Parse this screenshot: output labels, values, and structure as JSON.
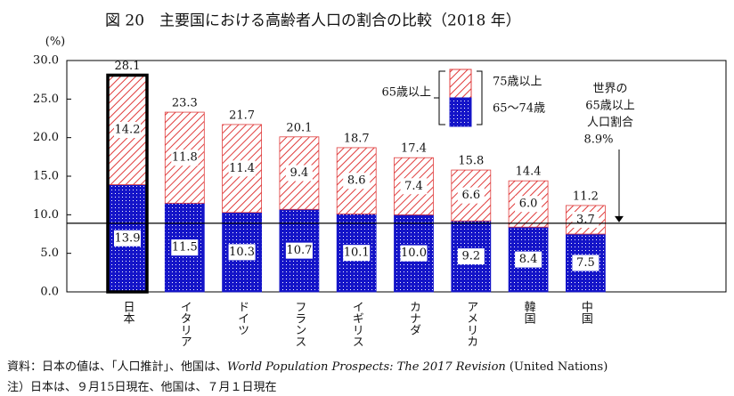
{
  "chart_data": {
    "type": "stacked-bar",
    "title": "図 20　主要国における高齢者人口の割合の比較（2018 年）",
    "y_label": "(%)",
    "categories": [
      "日本",
      "イタリア",
      "ドイツ",
      "フランス",
      "イギリス",
      "カナダ",
      "アメリカ",
      "韓国",
      "中国"
    ],
    "series": [
      {
        "name": "65〜74歳",
        "color": "#1414c8",
        "values": [
          13.9,
          11.5,
          10.3,
          10.7,
          10.1,
          10.0,
          9.2,
          8.4,
          7.5
        ],
        "value_labels": [
          "13.9",
          "11.5",
          "10.3",
          "10.7",
          "10.1",
          "10.0",
          "9.2",
          "8.4",
          "7.5"
        ]
      },
      {
        "name": "75歳以上",
        "color": "#e03c3c",
        "values": [
          14.2,
          11.8,
          11.4,
          9.4,
          8.6,
          7.4,
          6.6,
          6.0,
          3.7
        ],
        "value_labels": [
          "14.2",
          "11.8",
          "11.4",
          "9.4",
          "8.6",
          "7.4",
          "6.6",
          "6.0",
          "3.7"
        ]
      }
    ],
    "total_labels": [
      "28.1",
      "23.3",
      "21.7",
      "20.1",
      "18.7",
      "17.4",
      "15.8",
      "14.4",
      "11.2"
    ],
    "legend_group": "65歳以上",
    "highlight_index": 0,
    "ylim": [
      0,
      30
    ],
    "yticks": [
      {
        "value": 0,
        "label": "0.0"
      },
      {
        "value": 5,
        "label": "5.0"
      },
      {
        "value": 10,
        "label": "10.0"
      },
      {
        "value": 15,
        "label": "15.0"
      },
      {
        "value": 20,
        "label": "20.0"
      },
      {
        "value": 25,
        "label": "25.0"
      },
      {
        "value": 30,
        "label": "30.0"
      }
    ],
    "reference": {
      "value": 8.9,
      "label": [
        "世界の",
        "65歳以上",
        "人口割合"
      ],
      "value_label": "8.9%"
    },
    "notes": [
      [
        "資料：日本の値は、「人口推計」、他国は、",
        "World Population Prospects: The 2017 Revision",
        " (United Nations)"
      ],
      [
        "注）日本は、９月15日現在、他国は、７月１日現在"
      ]
    ]
  }
}
